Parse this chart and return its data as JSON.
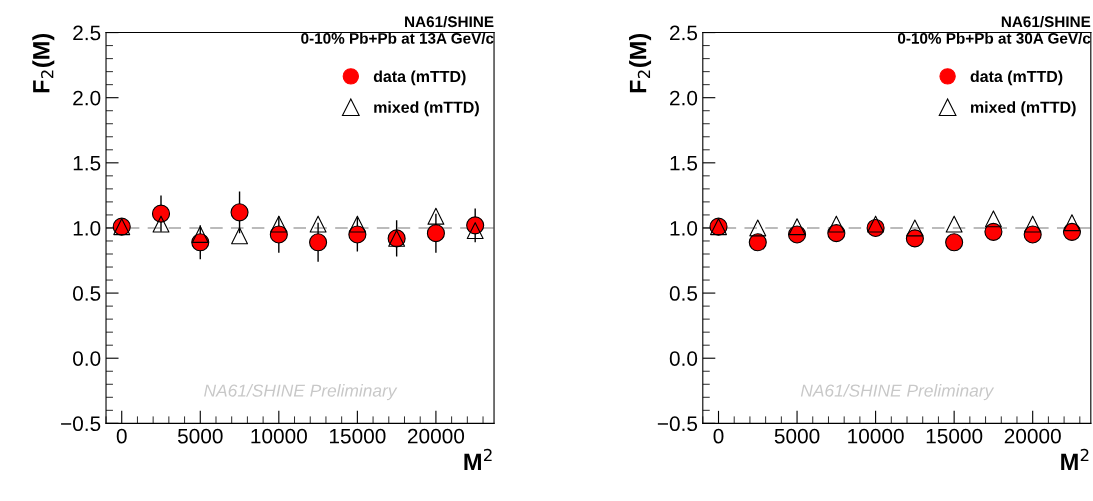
{
  "chart_data": [
    {
      "type": "scatter",
      "title": "NA61/SHINE",
      "subtitle": "0-10% Pb+Pb at 13A GeV/c",
      "xlabel": "M$^{2}$",
      "ylabel": "F$_{2}$(M)",
      "x": [
        0,
        2500,
        5000,
        7500,
        10000,
        12500,
        15000,
        17500,
        20000,
        22500
      ],
      "series": [
        {
          "name": "data (mTTD)",
          "color": "#ff0000",
          "marker": "circle",
          "values": [
            1.01,
            1.11,
            0.89,
            1.12,
            0.95,
            0.89,
            0.95,
            0.92,
            0.96,
            1.02
          ],
          "errors": [
            0.03,
            0.14,
            0.13,
            0.16,
            0.14,
            0.15,
            0.13,
            0.14,
            0.15,
            0.13
          ]
        },
        {
          "name": "mixed (mTTD)",
          "color": "#000000",
          "marker": "triangle",
          "values": [
            1.01,
            1.03,
            0.95,
            0.94,
            1.03,
            1.03,
            1.03,
            0.92,
            1.09,
            0.98
          ]
        }
      ],
      "xlim": [
        -1000,
        23700
      ],
      "xticks": [
        0,
        5000,
        10000,
        15000,
        20000
      ],
      "ylim": [
        -0.5,
        2.5
      ],
      "yticks": [
        {
          "value": -0.5,
          "label": "−0.5"
        },
        {
          "value": 0,
          "label": "0.0"
        },
        0.5,
        {
          "value": 1,
          "label": "1.0"
        },
        1.5,
        {
          "value": 2,
          "label": "2.0"
        },
        2.5
      ],
      "ref_lines": [
        {
          "axis": "y",
          "value": 1,
          "color": "#bbbbbb",
          "line_style": "dashed"
        }
      ],
      "annotations": [
        "NA61/SHINE Preliminary"
      ],
      "legend": "top right",
      "grid": false
    },
    {
      "type": "scatter",
      "title": "NA61/SHINE",
      "subtitle": "0-10% Pb+Pb at 30A GeV/c",
      "xlabel": "M$^{2}$",
      "ylabel": "F$_{2}$(M)",
      "x": [
        0,
        2500,
        5000,
        7500,
        10000,
        12500,
        15000,
        17500,
        20000,
        22500
      ],
      "series": [
        {
          "name": "data (mTTD)",
          "color": "#ff0000",
          "marker": "circle",
          "values": [
            1.01,
            0.89,
            0.95,
            0.96,
            1.0,
            0.92,
            0.89,
            0.97,
            0.95,
            0.97
          ],
          "errors": [
            0.03,
            0.06,
            0.06,
            0.06,
            0.06,
            0.06,
            0.06,
            0.06,
            0.06,
            0.06
          ]
        },
        {
          "name": "mixed (mTTD)",
          "color": "#000000",
          "marker": "triangle",
          "values": [
            1.01,
            1.0,
            1.01,
            1.03,
            1.03,
            1.0,
            1.03,
            1.07,
            1.03,
            1.04
          ]
        }
      ],
      "xlim": [
        -1000,
        23700
      ],
      "xticks": [
        0,
        5000,
        10000,
        15000,
        20000
      ],
      "ylim": [
        -0.5,
        2.5
      ],
      "yticks": [
        {
          "value": -0.5,
          "label": "−0.5"
        },
        {
          "value": 0,
          "label": "0.0"
        },
        0.5,
        {
          "value": 1,
          "label": "1.0"
        },
        1.5,
        {
          "value": 2,
          "label": "2.0"
        },
        2.5
      ],
      "ref_lines": [
        {
          "axis": "y",
          "value": 1,
          "color": "#bbbbbb",
          "line_style": "dashed"
        }
      ],
      "annotations": [
        "NA61/SHINE Preliminary"
      ],
      "legend": "top right",
      "grid": false
    }
  ]
}
